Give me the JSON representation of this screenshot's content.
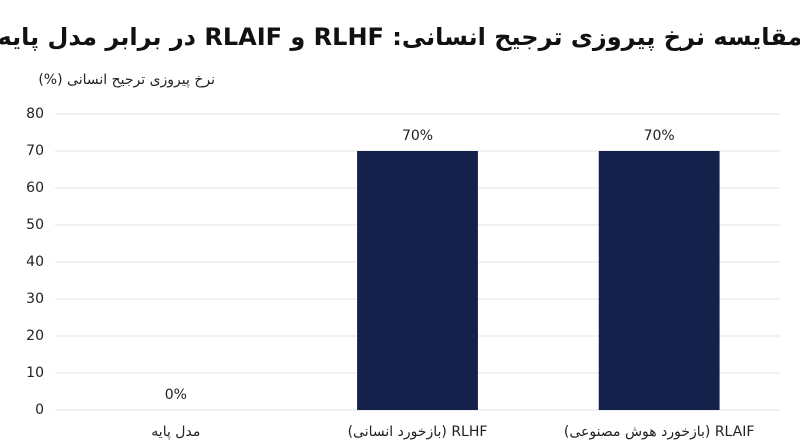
{
  "chart_data": {
    "type": "bar",
    "title": "مقایسه نرخ پیروزی ترجیح انسانی: RLHF و RLAIF در برابر مدل پایه",
    "y_label": "نرخ پیروزی ترجیح انسانی (%)",
    "categories": [
      "مدل پایه",
      "RLHF (بازخورد انسانی)",
      "RLAIF (بازخورد هوش مصنوعی)"
    ],
    "values": [
      0,
      70,
      70
    ],
    "value_labels": [
      "0%",
      "70%",
      "70%"
    ],
    "color": "#14224b",
    "ylim": [
      0,
      80
    ],
    "yticks": [
      0,
      10,
      20,
      30,
      40,
      50,
      60,
      70,
      80
    ],
    "grid": true
  }
}
